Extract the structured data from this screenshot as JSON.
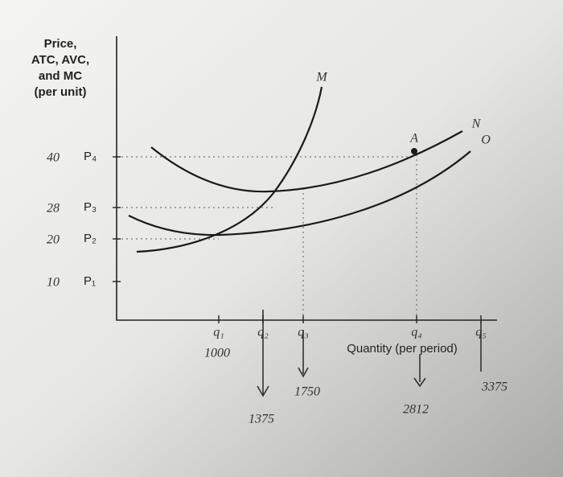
{
  "y_axis": {
    "label_lines": [
      "Price,",
      "ATC, AVC,",
      "and MC",
      "(per unit)"
    ],
    "levels": [
      {
        "label": "P₄",
        "note": "40"
      },
      {
        "label": "P₃",
        "note": "28"
      },
      {
        "label": "P₂",
        "note": "20"
      },
      {
        "label": "P₁",
        "note": "10"
      }
    ]
  },
  "x_axis": {
    "label": "Quantity (per period)",
    "levels": [
      {
        "label": "q₁",
        "note": "1000"
      },
      {
        "label": "q₂",
        "note": "1375"
      },
      {
        "label": "q₃",
        "note": "1750"
      },
      {
        "label": "q₄",
        "note": "2812"
      },
      {
        "label": "q₅",
        "note": "3375"
      }
    ]
  },
  "curves": [
    {
      "label": "M"
    },
    {
      "label": "N"
    },
    {
      "label": "O"
    }
  ],
  "point": {
    "label": "A"
  }
}
